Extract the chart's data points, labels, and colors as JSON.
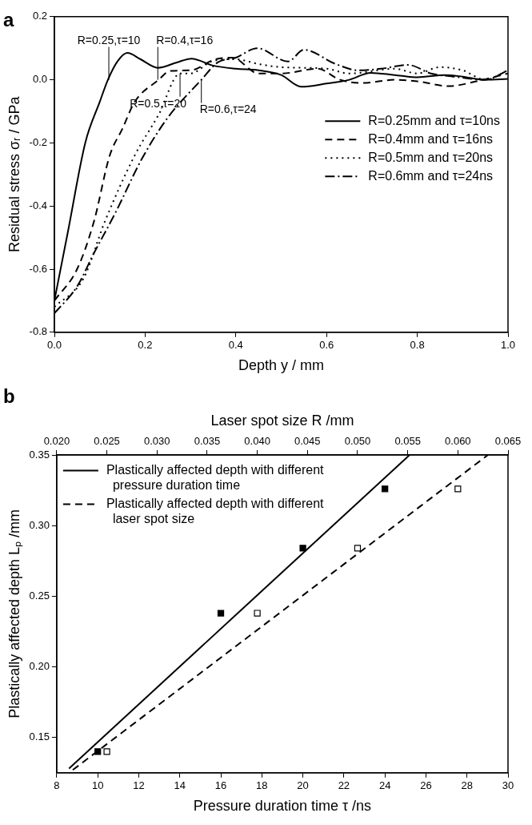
{
  "chart_data": [
    {
      "type": "line",
      "title": "a",
      "xlabel": "Depth y / mm",
      "ylabel": "Residual stress σᵣ / GPa",
      "xlim": [
        0,
        1
      ],
      "ylim": [
        -0.8,
        0.2
      ],
      "xticks": [
        {
          "value": 0,
          "label": "0.0"
        },
        0.2,
        0.4,
        0.6,
        0.8,
        {
          "value": 1,
          "label": "1.0"
        }
      ],
      "yticks": [
        -0.8,
        -0.6,
        -0.4,
        -0.2,
        {
          "value": 0,
          "label": "0.0"
        },
        0.2
      ],
      "grid": false,
      "legend": "right",
      "marker": "none",
      "series": [
        {
          "name": "R=0.25mm and τ=10ns",
          "color": "#000000",
          "line_style": "solid",
          "x": [
            0,
            0.03,
            0.068,
            0.1,
            0.118,
            0.14,
            0.161,
            0.19,
            0.228,
            0.27,
            0.302,
            0.35,
            0.4,
            0.45,
            0.5,
            0.544,
            0.6,
            0.65,
            0.697,
            0.75,
            0.8,
            0.861,
            0.9,
            0.95,
            1.0
          ],
          "values": [
            -0.7,
            -0.48,
            -0.2,
            -0.07,
            0,
            0.06,
            0.085,
            0.065,
            0.038,
            0.055,
            0.067,
            0.045,
            0.035,
            0.03,
            0.015,
            -0.022,
            -0.012,
            0,
            0.022,
            0.015,
            0.008,
            0.015,
            0.01,
            0,
            0.003
          ]
        },
        {
          "name": "R=0.4mm and τ=16ns",
          "color": "#000000",
          "line_style": "dashed",
          "x": [
            0,
            0.05,
            0.087,
            0.122,
            0.15,
            0.177,
            0.23,
            0.255,
            0.3,
            0.353,
            0.392,
            0.45,
            0.5,
            0.58,
            0.63,
            0.68,
            0.75,
            0.8,
            0.87,
            0.93,
            1.0
          ],
          "values": [
            -0.7,
            -0.6,
            -0.45,
            -0.24,
            -0.155,
            -0.07,
            0,
            0.028,
            0.03,
            0.064,
            0.07,
            0.02,
            0.02,
            0.035,
            0,
            -0.01,
            0,
            -0.005,
            -0.02,
            -0.005,
            0.02
          ]
        },
        {
          "name": "R=0.5mm and τ=20ns",
          "color": "#000000",
          "line_style": "dotted",
          "x": [
            0,
            0.064,
            0.111,
            0.177,
            0.23,
            0.277,
            0.3,
            0.35,
            0.4,
            0.45,
            0.5,
            0.6,
            0.65,
            0.75,
            0.8,
            0.85,
            0.9,
            0.95,
            1.0
          ],
          "values": [
            -0.72,
            -0.63,
            -0.45,
            -0.24,
            -0.11,
            0.02,
            0.02,
            0.06,
            0.065,
            0.05,
            0.04,
            0.035,
            0.02,
            0.035,
            0.02,
            0.04,
            0.03,
            0,
            0.03
          ]
        },
        {
          "name": "R=0.6mm and τ=24ns",
          "color": "#000000",
          "line_style": "dashdot",
          "x": [
            0,
            0.05,
            0.087,
            0.135,
            0.193,
            0.25,
            0.324,
            0.36,
            0.4,
            0.447,
            0.515,
            0.55,
            0.62,
            0.67,
            0.72,
            0.78,
            0.83,
            0.88,
            0.95,
            1.0
          ],
          "values": [
            -0.74,
            -0.655,
            -0.55,
            -0.42,
            -0.25,
            -0.12,
            0,
            0.055,
            0.07,
            0.1,
            0.058,
            0.095,
            0.05,
            0.03,
            0.035,
            0.047,
            0.02,
            0.01,
            0,
            0.03
          ]
        }
      ],
      "annotations": [
        {
          "text": "R=0.25,τ=10",
          "x": 0.12,
          "y": 0
        },
        {
          "text": "R=0.4,τ=16",
          "x": 0.228,
          "y": 0
        },
        {
          "text": "R=0.5,τ=20",
          "x": 0.277,
          "y": 0.02
        },
        {
          "text": "R=0.6,τ=24",
          "x": 0.324,
          "y": 0
        }
      ]
    },
    {
      "type": "scatter",
      "title": "b",
      "xlabel": "Pressure duration time τ /ns",
      "x2label": "Laser spot size R /mm",
      "ylabel": "Plastically affected depth Lₚ /mm",
      "xlim": [
        8,
        30
      ],
      "xticks": [
        8,
        10,
        12,
        14,
        16,
        18,
        20,
        22,
        24,
        26,
        28,
        30
      ],
      "x2lim": [
        0.02,
        0.065
      ],
      "x2ticks": [
        {
          "value": 0.02,
          "label": "0.020"
        },
        0.025,
        {
          "value": 0.03,
          "label": "0.030"
        },
        0.035,
        {
          "value": 0.04,
          "label": "0.040"
        },
        0.045,
        {
          "value": 0.05,
          "label": "0.050"
        },
        0.055,
        {
          "value": 0.06,
          "label": "0.060"
        },
        0.065
      ],
      "ylim": [
        0.125,
        0.35
      ],
      "yticks": [
        0.15,
        {
          "value": 0.2,
          "label": "0.20"
        },
        0.25,
        {
          "value": 0.3,
          "label": "0.30"
        },
        0.35
      ],
      "grid": false,
      "legend": "top left",
      "series": [
        {
          "type": "scatter",
          "color": "#000000",
          "marker": "square",
          "x": [
            10,
            16,
            20,
            24
          ],
          "values": [
            0.14,
            0.238,
            0.284,
            0.326
          ]
        },
        {
          "type": "scatter",
          "color": "#000000",
          "marker": "square-open",
          "axis": "x2",
          "x": [
            0.025,
            0.04,
            0.05,
            0.06
          ],
          "values": [
            0.14,
            0.238,
            0.284,
            0.326
          ]
        },
        {
          "type": "line",
          "name": "Plastically affected depth with different pressure duration time",
          "color": "#000000",
          "line_style": "solid",
          "x": [
            8.6,
            25.2
          ],
          "values": [
            0.128,
            0.35
          ]
        },
        {
          "type": "line",
          "name": "Plastically affected depth with different laser spot size",
          "color": "#000000",
          "line_style": "dashed",
          "axis": "x2",
          "x": [
            0.0216,
            0.063
          ],
          "values": [
            0.127,
            0.35
          ]
        }
      ]
    }
  ]
}
